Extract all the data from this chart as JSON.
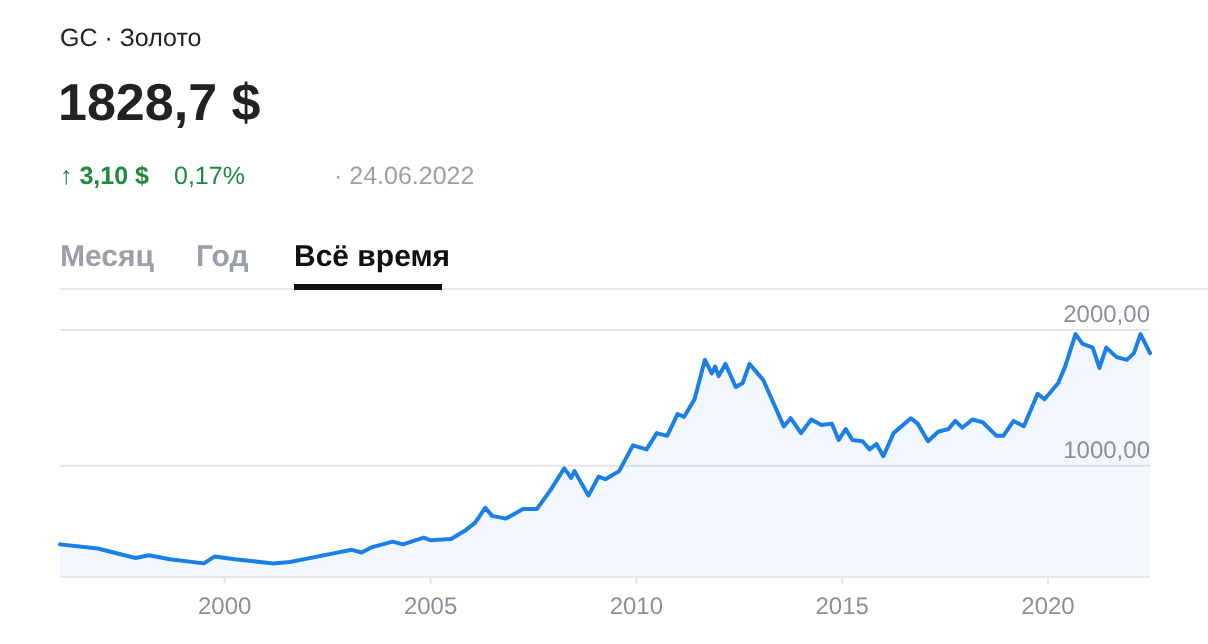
{
  "chart_data": {
    "type": "area",
    "title": "GC · Золото",
    "subtitle": "1828,7 $",
    "annotations": [
      "↑ 3,10 $",
      "0,17%",
      "· 24.06.2022",
      "Месяц",
      "Год",
      "Всё время"
    ],
    "x": [
      "1996-01",
      "1996-12",
      "1997-11",
      "1998-03",
      "1998-09",
      "1999-07",
      "1999-10",
      "2000-04",
      "2001-03",
      "2001-08",
      "2002-04",
      "2002-08",
      "2003-02",
      "2003-05",
      "2003-08",
      "2004-02",
      "2004-05",
      "2004-11",
      "2005-01",
      "2005-07",
      "2005-11",
      "2006-02",
      "2006-05",
      "2006-07",
      "2006-11",
      "2007-04",
      "2007-08",
      "2007-12",
      "2008-04",
      "2008-06",
      "2008-07",
      "2008-11",
      "2009-02",
      "2009-04",
      "2009-08",
      "2009-12",
      "2010-04",
      "2010-07",
      "2010-10",
      "2011-01",
      "2011-03",
      "2011-06",
      "2011-09",
      "2011-11",
      "2011-12",
      "2012-01",
      "2012-03",
      "2012-06",
      "2012-08",
      "2012-10",
      "2013-02",
      "2013-08",
      "2013-10",
      "2014-01",
      "2014-04",
      "2014-07",
      "2014-10",
      "2014-12",
      "2015-02",
      "2015-04",
      "2015-07",
      "2015-09",
      "2015-11",
      "2016-01",
      "2016-04",
      "2016-09",
      "2016-11",
      "2017-02",
      "2017-05",
      "2017-08",
      "2017-10",
      "2017-12",
      "2018-03",
      "2018-06",
      "2018-10",
      "2018-12",
      "2019-03",
      "2019-06",
      "2019-10",
      "2019-12",
      "2020-04",
      "2020-06",
      "2020-09",
      "2020-11",
      "2021-02",
      "2021-04",
      "2021-06",
      "2021-09",
      "2021-12",
      "2022-02",
      "2022-04",
      "2022-06-24"
    ],
    "series": [
      {
        "color": "#1a7fe6",
        "values": [
          420,
          390,
          320,
          340,
          310,
          280,
          330,
          310,
          280,
          290,
          330,
          350,
          380,
          360,
          400,
          440,
          420,
          470,
          450,
          460,
          520,
          580,
          690,
          630,
          610,
          680,
          680,
          820,
          980,
          910,
          960,
          780,
          920,
          900,
          960,
          1150,
          1120,
          1240,
          1220,
          1380,
          1360,
          1490,
          1780,
          1680,
          1730,
          1660,
          1750,
          1580,
          1610,
          1750,
          1630,
          1290,
          1350,
          1240,
          1340,
          1300,
          1310,
          1190,
          1270,
          1190,
          1180,
          1120,
          1160,
          1070,
          1240,
          1350,
          1310,
          1180,
          1250,
          1270,
          1330,
          1280,
          1340,
          1320,
          1220,
          1220,
          1330,
          1290,
          1530,
          1490,
          1610,
          1730,
          1970,
          1900,
          1870,
          1720,
          1870,
          1800,
          1780,
          1830,
          1970,
          1830
        ]
      }
    ],
    "xlim": [
      "1996-01",
      "2022-06-24"
    ],
    "xticks": [
      {
        "value": "2000-01",
        "label": "2000"
      },
      {
        "value": "2005-01",
        "label": "2005"
      },
      {
        "value": "2010-01",
        "label": "2010"
      },
      {
        "value": "2015-01",
        "label": "2015"
      },
      {
        "value": "2020-01",
        "label": "2020"
      }
    ],
    "ylim": [
      187,
      2000
    ],
    "yticks": [
      {
        "value": 1000,
        "label": "1000,00"
      },
      {
        "value": 2000,
        "label": "2000,00"
      }
    ],
    "grid": "y",
    "marker": "none",
    "line_style": "solid"
  }
}
